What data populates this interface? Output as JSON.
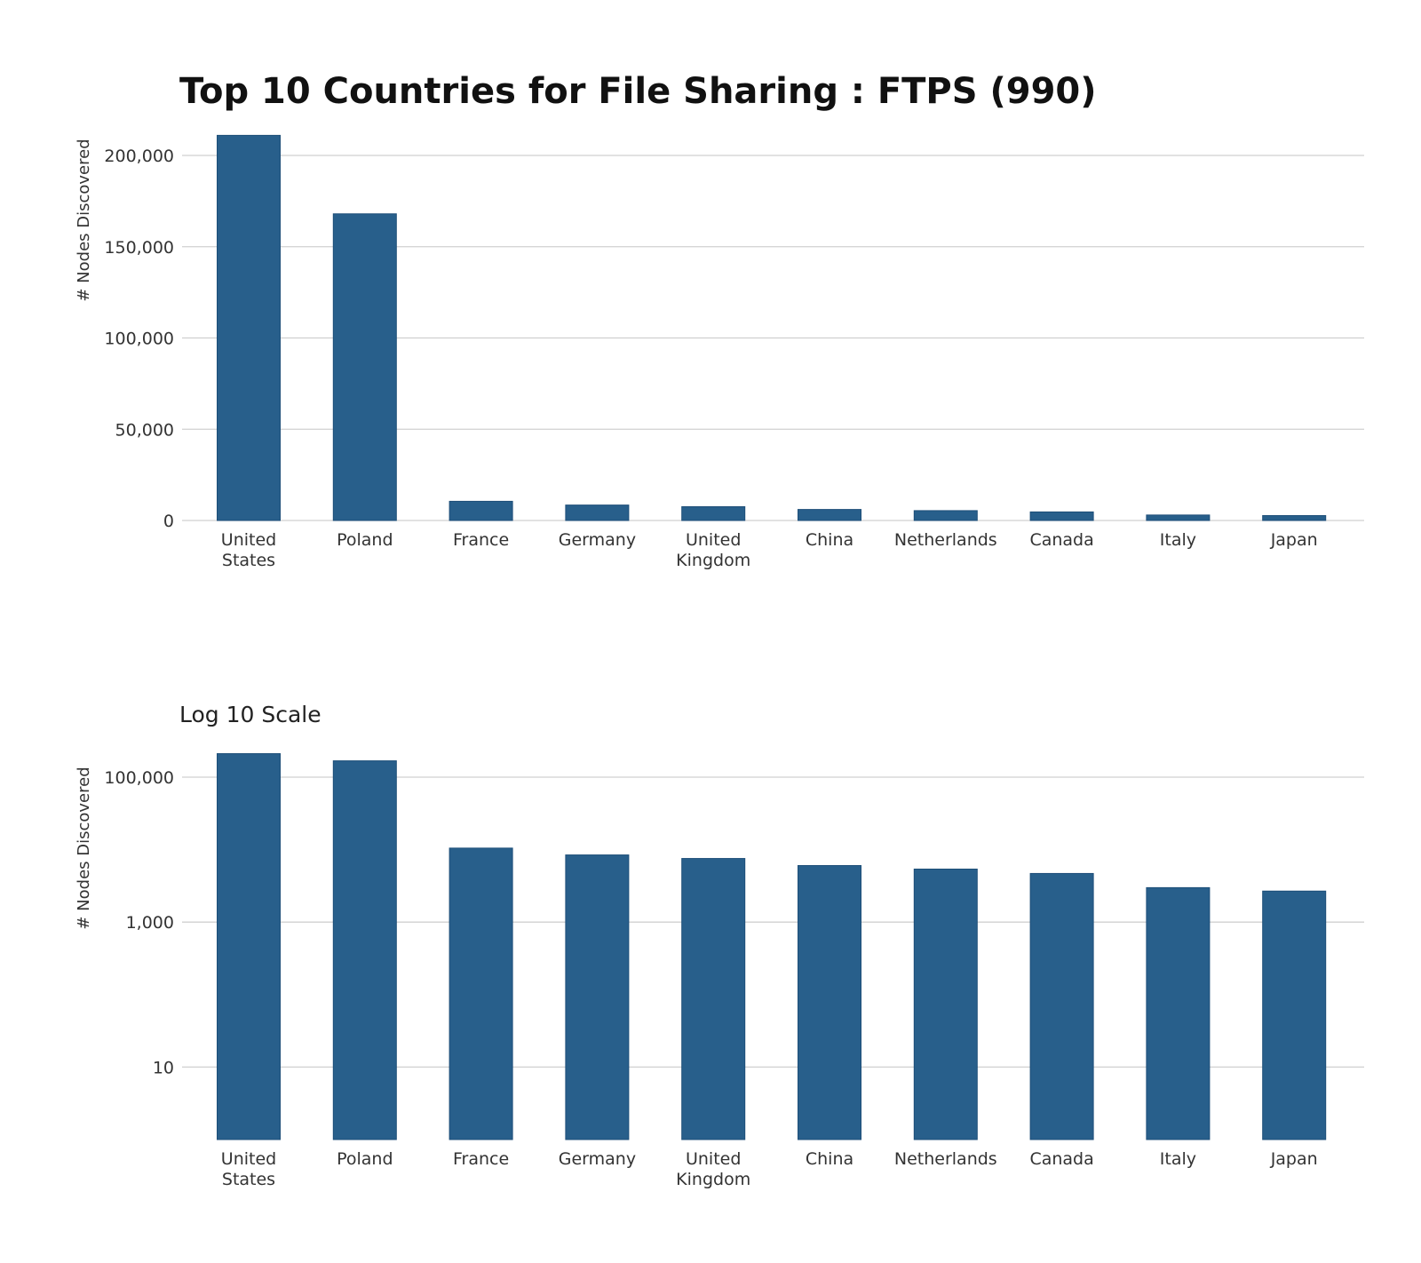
{
  "colors": {
    "bar": "#285f8b",
    "grid": "#d0d0d0",
    "text": "#333333"
  },
  "chart_data": [
    {
      "type": "bar",
      "title": "Top 10 Countries for File Sharing : FTPS (990)",
      "xlabel": "",
      "ylabel": "# Nodes Discovered",
      "scale": "linear",
      "ylim": [
        0,
        210000
      ],
      "yticks": [
        0,
        50000,
        100000,
        150000,
        200000
      ],
      "ytick_labels": [
        "0",
        "50,000",
        "100,000",
        "150,000",
        "200,000"
      ],
      "grid": true,
      "categories": [
        [
          "United",
          "States"
        ],
        [
          "Poland"
        ],
        [
          "France"
        ],
        [
          "Germany"
        ],
        [
          "United",
          "Kingdom"
        ],
        [
          "China"
        ],
        [
          "Netherlands"
        ],
        [
          "Canada"
        ],
        [
          "Italy"
        ],
        [
          "Japan"
        ]
      ],
      "values": [
        211000,
        168000,
        10500,
        8450,
        7550,
        6030,
        5390,
        4690,
        2990,
        2680
      ]
    },
    {
      "type": "bar",
      "title": "Log 10 Scale",
      "xlabel": "",
      "ylabel": "# Nodes Discovered",
      "scale": "log10",
      "ylim": [
        1,
        211000
      ],
      "yticks": [
        10,
        1000,
        100000
      ],
      "ytick_labels": [
        "10",
        "1,000",
        "100,000"
      ],
      "grid": true,
      "categories": [
        [
          "United",
          "States"
        ],
        [
          "Poland"
        ],
        [
          "France"
        ],
        [
          "Germany"
        ],
        [
          "United",
          "Kingdom"
        ],
        [
          "China"
        ],
        [
          "Netherlands"
        ],
        [
          "Canada"
        ],
        [
          "Italy"
        ],
        [
          "Japan"
        ]
      ],
      "values": [
        211000,
        168000,
        10500,
        8450,
        7550,
        6030,
        5390,
        4690,
        2990,
        2680
      ]
    }
  ]
}
